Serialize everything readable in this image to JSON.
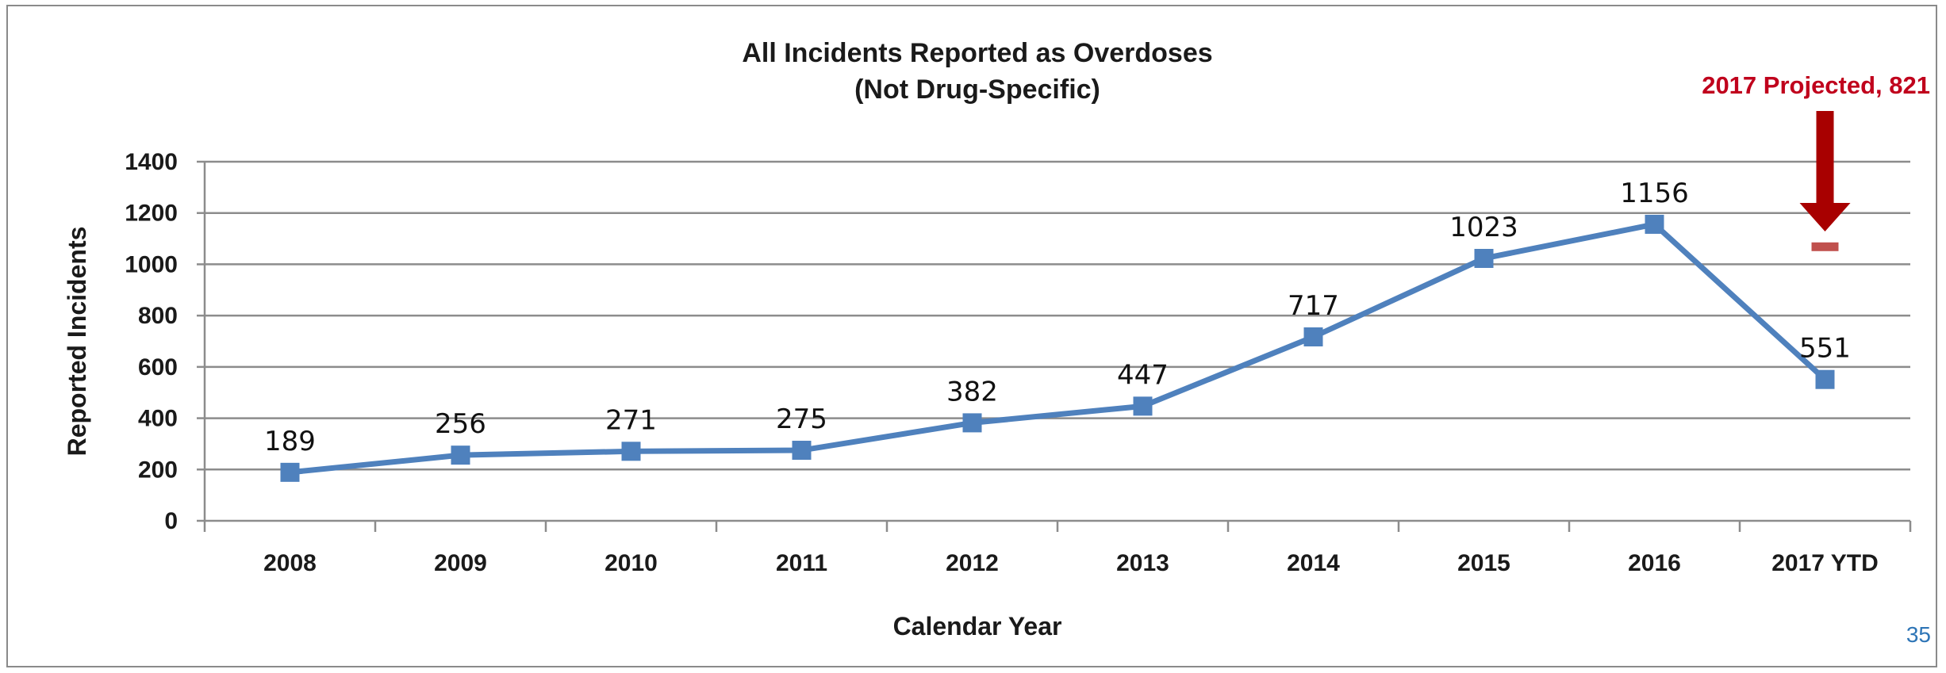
{
  "chart_data": {
    "type": "line",
    "title": [
      "All Incidents Reported as Overdoses",
      "(Not Drug-Specific)"
    ],
    "xlabel": "Calendar Year",
    "ylabel": "Reported Incidents",
    "categories": [
      "2008",
      "2009",
      "2010",
      "2011",
      "2012",
      "2013",
      "2014",
      "2015",
      "2016",
      "2017 YTD"
    ],
    "series": [
      {
        "values": [
          189,
          256,
          271,
          275,
          382,
          447,
          717,
          1023,
          1156,
          551
        ],
        "labels": [
          "189",
          "256",
          "271",
          "275",
          "382",
          "447",
          "717",
          "1023",
          "1156",
          "551"
        ],
        "color": "#4f81bd"
      }
    ],
    "ylim": [
      0,
      1400
    ],
    "yticks": [
      0,
      200,
      400,
      600,
      800,
      1000,
      1200,
      1400
    ],
    "ytick_labels": [
      "0",
      "200",
      "400",
      "600",
      "800",
      "1000",
      "1200",
      "1400"
    ],
    "grid": true,
    "legend": "none",
    "annotation": {
      "text": "2017 Projected, 821",
      "category": "2017 YTD",
      "marker_value": 1070,
      "color": "#c0001c",
      "arrow_color": "#a80000"
    }
  },
  "page_number": "35",
  "page_number_color": "#2e75b6"
}
